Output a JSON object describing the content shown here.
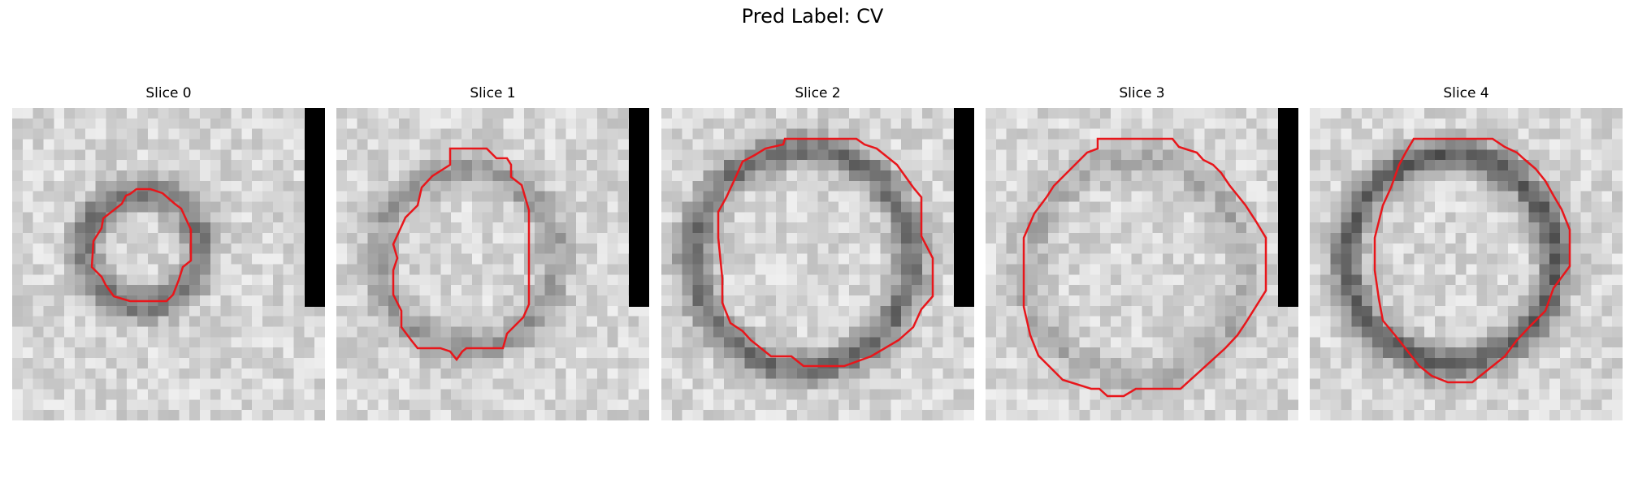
{
  "figure": {
    "suptitle": "Pred Label: CV"
  },
  "panels": [
    {
      "title": "Slice 0",
      "mask_bar": true,
      "ring_darkness": 0.55
    },
    {
      "title": "Slice 1",
      "mask_bar": true,
      "ring_darkness": 0.35
    },
    {
      "title": "Slice 2",
      "mask_bar": true,
      "ring_darkness": 0.6
    },
    {
      "title": "Slice 3",
      "mask_bar": true,
      "ring_darkness": 0.25
    },
    {
      "title": "Slice 4",
      "mask_bar": false,
      "ring_darkness": 0.7
    }
  ],
  "colors": {
    "contour": "#e8161b",
    "mask_bar": "#000000"
  }
}
